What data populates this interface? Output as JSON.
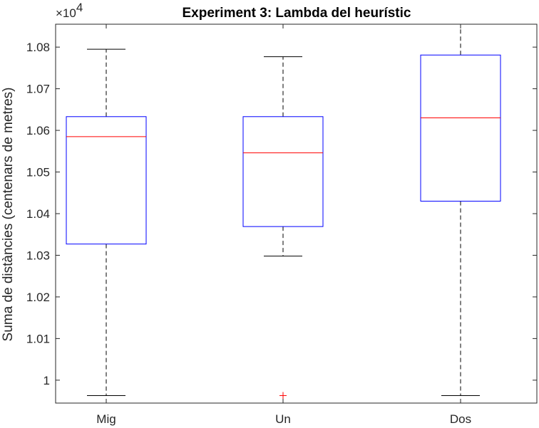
{
  "chart_data": {
    "type": "boxplot",
    "title": "Experiment 3: Lambda del heurístic",
    "xlabel": "",
    "ylabel": "Suma de distàncies (centenars de metres)",
    "y_multiplier_label": "×10",
    "y_multiplier_exponent": "4",
    "categories": [
      "Mig",
      "Un",
      "Dos"
    ],
    "ylim": [
      0.9945,
      1.0855
    ],
    "yticks": [
      1,
      1.01,
      1.02,
      1.03,
      1.04,
      1.05,
      1.06,
      1.07,
      1.08
    ],
    "ytick_labels": [
      "1",
      "1.01",
      "1.02",
      "1.03",
      "1.04",
      "1.05",
      "1.06",
      "1.07",
      "1.08"
    ],
    "boxes": [
      {
        "category": "Mig",
        "whisker_low": 0.9963,
        "q1": 1.0327,
        "median": 1.0585,
        "q3": 1.0633,
        "whisker_high": 1.0795,
        "outliers": []
      },
      {
        "category": "Un",
        "whisker_low": 1.0298,
        "q1": 1.0369,
        "median": 1.0546,
        "q3": 1.0633,
        "whisker_high": 1.0777,
        "outliers": [
          0.9963
        ]
      },
      {
        "category": "Dos",
        "whisker_low": 0.9963,
        "q1": 1.043,
        "median": 1.063,
        "q3": 1.0781,
        "whisker_high": 1.09,
        "outliers": []
      }
    ],
    "colors": {
      "box": "#0000ff",
      "median": "#ff0000",
      "whisker": "#000000",
      "outlier": "#ff0000",
      "axis": "#262626"
    }
  }
}
